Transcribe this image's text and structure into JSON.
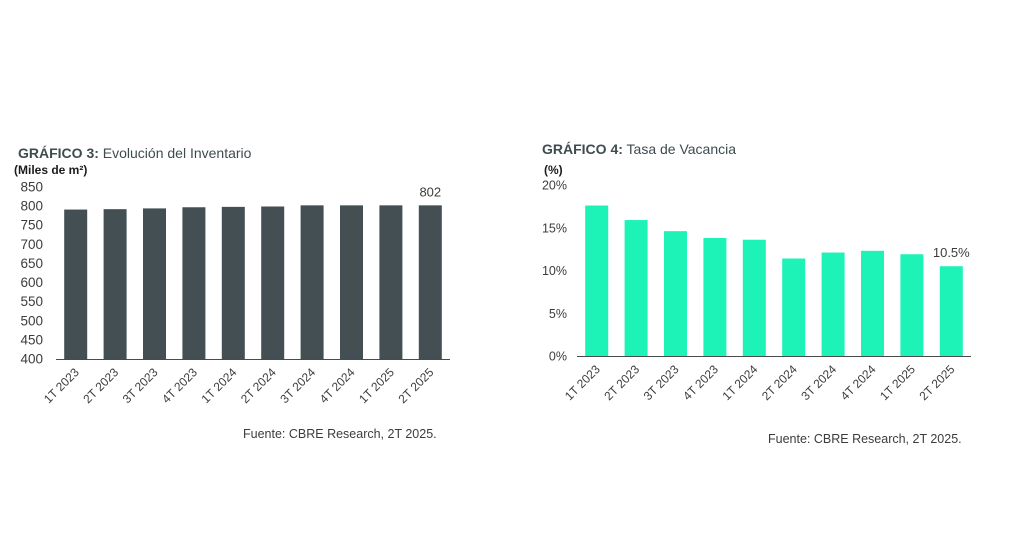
{
  "colors": {
    "inventory_bar": "#434f52",
    "vacancy_bar": "#1df2b7",
    "axis": "#4a4a4a",
    "text": "#3c3c3c"
  },
  "chart_data": [
    {
      "type": "bar",
      "title_prefix": "GRÁFICO 3:",
      "title_text": "Evolución del Inventario",
      "unit_label": "(Miles de m²)",
      "categories": [
        "1T 2023",
        "2T 2023",
        "3T 2023",
        "4T 2023",
        "1T 2024",
        "2T 2024",
        "3T 2024",
        "4T 2024",
        "1T 2025",
        "2T 2025"
      ],
      "values": [
        791,
        792,
        794,
        797,
        798,
        799,
        802,
        802,
        802,
        802
      ],
      "yticks": [
        "850",
        "800",
        "750",
        "700",
        "650",
        "600",
        "550",
        "500",
        "450",
        "400"
      ],
      "ylim": [
        400,
        850
      ],
      "last_value_label": "802",
      "source": "Fuente: CBRE Research, 2T 2025.",
      "grid": false
    },
    {
      "type": "bar",
      "title_prefix": "GRÁFICO 4:",
      "title_text": "Tasa de Vacancia",
      "unit_label": "(%)",
      "categories": [
        "1T 2023",
        "2T 2023",
        "3T 2023",
        "4T 2023",
        "1T 2024",
        "2T 2024",
        "3T 2024",
        "4T 2024",
        "1T 2025",
        "2T 2025"
      ],
      "values": [
        17.6,
        15.9,
        14.6,
        13.8,
        13.6,
        11.4,
        12.1,
        12.3,
        11.9,
        10.5
      ],
      "yticks": [
        "20%",
        "15%",
        "10%",
        "5%",
        "0%"
      ],
      "ylim": [
        0,
        20
      ],
      "last_value_label": "10.5%",
      "source": "Fuente: CBRE Research, 2T 2025.",
      "grid": false
    }
  ]
}
